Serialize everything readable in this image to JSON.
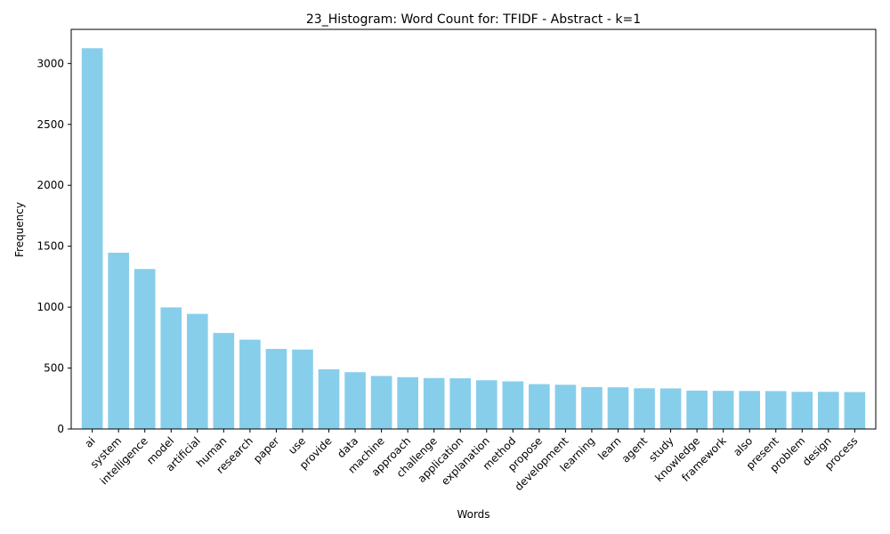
{
  "chart_data": {
    "type": "bar",
    "title": "23_Histogram: Word Count for: TFIDF - Abstract - k=1",
    "xlabel": "Words",
    "ylabel": "Frequency",
    "ylim": [
      0,
      3280
    ],
    "yticks": [
      0,
      500,
      1000,
      1500,
      2000,
      2500,
      3000
    ],
    "grid": false,
    "legend": "none",
    "bar_color": "#87CEEB",
    "categories": [
      "ai",
      "system",
      "intelligence",
      "model",
      "artificial",
      "human",
      "research",
      "paper",
      "use",
      "provide",
      "data",
      "machine",
      "approach",
      "challenge",
      "application",
      "explanation",
      "method",
      "propose",
      "development",
      "learning",
      "learn",
      "agent",
      "study",
      "knowledge",
      "framework",
      "also",
      "present",
      "problem",
      "design",
      "process"
    ],
    "values": [
      3125,
      1447,
      1313,
      998,
      945,
      788,
      733,
      657,
      652,
      490,
      466,
      435,
      425,
      418,
      416,
      400,
      391,
      368,
      363,
      344,
      342,
      334,
      333,
      315,
      313,
      312,
      311,
      305,
      305,
      303
    ]
  }
}
